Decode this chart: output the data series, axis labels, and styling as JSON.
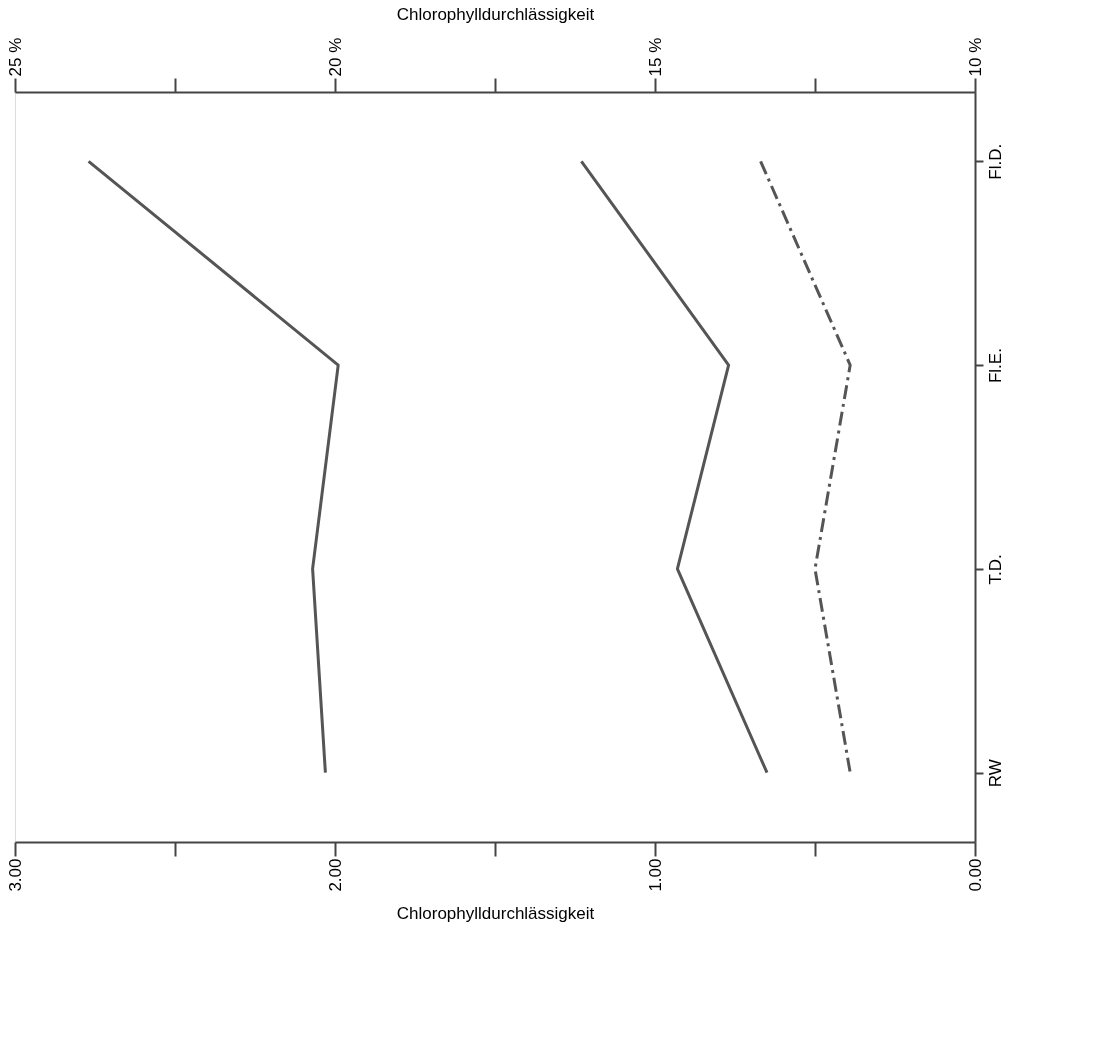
{
  "chart_data": {
    "type": "line",
    "orientation": "horizontal",
    "title": "Chlorophylldurchlässigkeit",
    "xlabel": "Chlorophylldurchlässigkeit",
    "categories": [
      "Fl.D.",
      "Fl.E.",
      "T.D.",
      "RW"
    ],
    "xlim": [
      3,
      0
    ],
    "xticks": [
      {
        "value": 3,
        "label": "3.00"
      },
      {
        "value": 2.5,
        "label": null
      },
      {
        "value": 2,
        "label": "2.00"
      },
      {
        "value": 1.5,
        "label": null
      },
      {
        "value": 1,
        "label": "1.00"
      },
      {
        "value": 0.5,
        "label": null
      },
      {
        "value": 0,
        "label": "0.00"
      }
    ],
    "x2lim": [
      25,
      10
    ],
    "x2ticks": [
      {
        "value": 25,
        "label": "25 %"
      },
      {
        "value": 22.5,
        "label": null
      },
      {
        "value": 20,
        "label": "20 %"
      },
      {
        "value": 17.5,
        "label": null
      },
      {
        "value": 15,
        "label": "15 %"
      },
      {
        "value": 12.5,
        "label": null
      },
      {
        "value": 10,
        "label": "10 %"
      }
    ],
    "grid": false,
    "marker": "none",
    "series": [
      {
        "color": "#555555",
        "line_style": "solid",
        "values": [
          2.77,
          1.99,
          2.07,
          2.03
        ]
      },
      {
        "color": "#555555",
        "line_style": "solid",
        "values": [
          1.23,
          0.77,
          0.93,
          0.65
        ]
      },
      {
        "color": "#555555",
        "line_style": "dashed",
        "values": [
          0.67,
          0.39,
          0.5,
          0.39
        ]
      }
    ]
  }
}
